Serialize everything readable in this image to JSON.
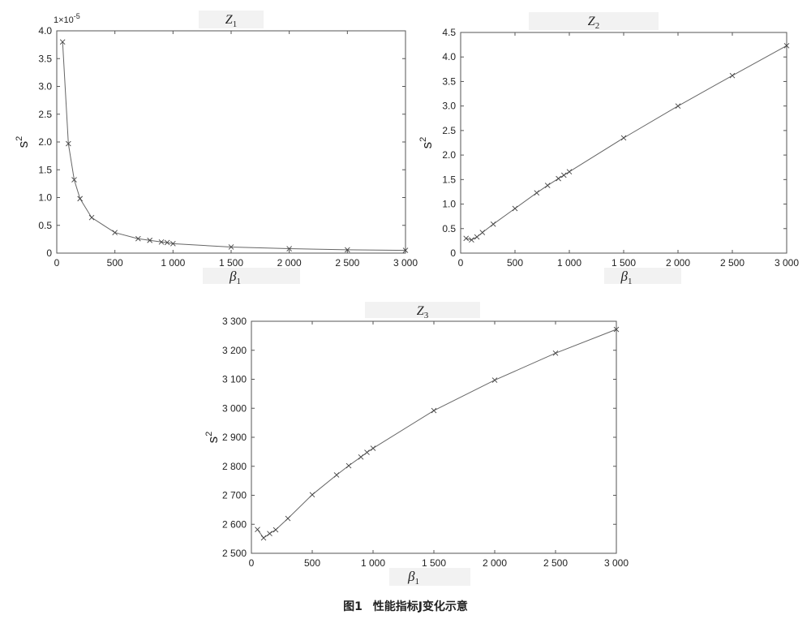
{
  "figure": {
    "caption_label": "图1",
    "caption_text": "性能指标J变化示意"
  },
  "chart_data": [
    {
      "type": "line",
      "title": "Z",
      "title_subscript": "1",
      "xlabel": "β",
      "xlabel_subscript": "1",
      "ylabel": "s",
      "ylabel_superscript": "2",
      "y_multiplier": "1×10",
      "y_multiplier_exponent": "-5",
      "xlim": [
        0,
        3000
      ],
      "ylim": [
        0,
        4.0
      ],
      "xticks": [
        0,
        500,
        1000,
        1500,
        2000,
        2500,
        3000
      ],
      "xtick_labels": [
        "0",
        "500",
        "1 000",
        "1 500",
        "2 000",
        "2 500",
        "3 000"
      ],
      "yticks": [
        0,
        0.5,
        1.0,
        1.5,
        2.0,
        2.5,
        3.0,
        3.5,
        4.0
      ],
      "ytick_labels": [
        "0",
        "0.5",
        "1.0",
        "1.5",
        "2.0",
        "2.5",
        "3.0",
        "3.5",
        "4.0"
      ],
      "marker": "x",
      "grid": false,
      "x": [
        50,
        100,
        150,
        200,
        300,
        500,
        700,
        800,
        900,
        950,
        1000,
        1500,
        2000,
        2500,
        3000
      ],
      "y": [
        3.8,
        1.97,
        1.32,
        0.98,
        0.64,
        0.37,
        0.26,
        0.23,
        0.2,
        0.19,
        0.17,
        0.11,
        0.08,
        0.06,
        0.05
      ]
    },
    {
      "type": "line",
      "title": "Z",
      "title_subscript": "2",
      "xlabel": "β",
      "xlabel_subscript": "1",
      "ylabel": "s",
      "ylabel_superscript": "2",
      "xlim": [
        0,
        3000
      ],
      "ylim": [
        0,
        4.5
      ],
      "xticks": [
        0,
        500,
        1000,
        1500,
        2000,
        2500,
        3000
      ],
      "xtick_labels": [
        "0",
        "500",
        "1 000",
        "1 500",
        "2 000",
        "2 500",
        "3 000"
      ],
      "yticks": [
        0,
        0.5,
        1.0,
        1.5,
        2.0,
        2.5,
        3.0,
        3.5,
        4.0,
        4.5
      ],
      "ytick_labels": [
        "0",
        "0.5",
        "1.0",
        "1.5",
        "2.0",
        "2.5",
        "3.0",
        "3.5",
        "4.0",
        "4.5"
      ],
      "marker": "x",
      "grid": false,
      "x": [
        50,
        100,
        150,
        200,
        300,
        500,
        700,
        800,
        900,
        950,
        1000,
        1500,
        2000,
        2500,
        3000
      ],
      "y": [
        0.3,
        0.27,
        0.33,
        0.42,
        0.59,
        0.91,
        1.23,
        1.38,
        1.52,
        1.59,
        1.66,
        2.35,
        3.0,
        3.62,
        4.23
      ]
    },
    {
      "type": "line",
      "title": "Z",
      "title_subscript": "3",
      "xlabel": "β",
      "xlabel_subscript": "1",
      "ylabel": "s",
      "ylabel_superscript": "2",
      "xlim": [
        0,
        3000
      ],
      "ylim": [
        2500,
        3300
      ],
      "xticks": [
        0,
        500,
        1000,
        1500,
        2000,
        2500,
        3000
      ],
      "xtick_labels": [
        "0",
        "500",
        "1 000",
        "1 500",
        "2 000",
        "2 500",
        "3 000"
      ],
      "yticks": [
        2500,
        2600,
        2700,
        2800,
        2900,
        3000,
        3100,
        3200,
        3300
      ],
      "ytick_labels": [
        "2 500",
        "2 600",
        "2 700",
        "2 800",
        "2 900",
        "3 000",
        "3 100",
        "3 200",
        "3 300"
      ],
      "marker": "x",
      "grid": false,
      "x": [
        50,
        100,
        150,
        200,
        300,
        500,
        700,
        800,
        900,
        950,
        1000,
        1500,
        2000,
        2500,
        3000
      ],
      "y": [
        2582,
        2553,
        2568,
        2581,
        2620,
        2702,
        2770,
        2802,
        2832,
        2848,
        2862,
        2992,
        3097,
        3190,
        3272
      ]
    }
  ]
}
